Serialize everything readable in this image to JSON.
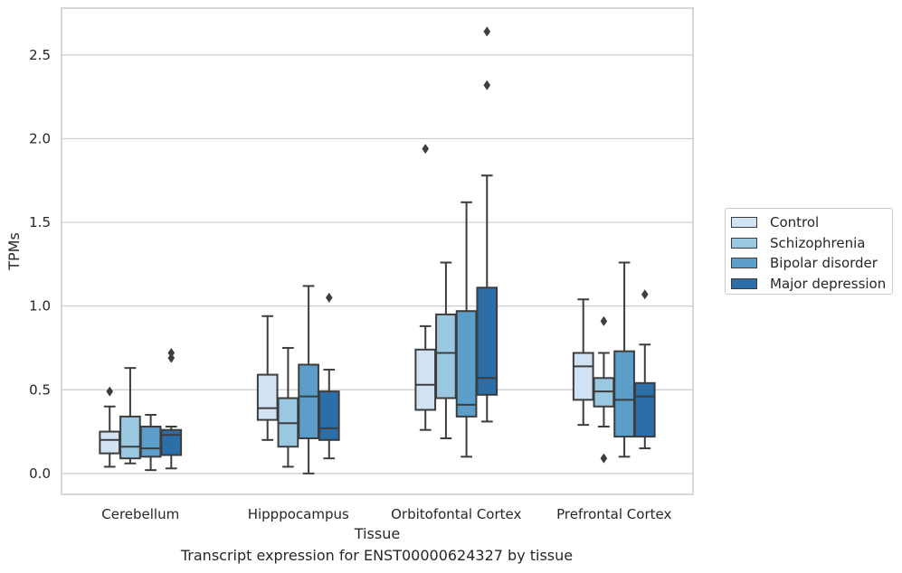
{
  "chart_data": {
    "type": "box",
    "title": "Transcript expression for ENST00000624327 by tissue",
    "xlabel": "Tissue",
    "ylabel": "TPMs",
    "ylim": [
      -0.125,
      2.78
    ],
    "yticks": [
      "0.0",
      "0.5",
      "1.0",
      "1.5",
      "2.0",
      "2.5"
    ],
    "ytick_values": [
      0.0,
      0.5,
      1.0,
      1.5,
      2.0,
      2.5
    ],
    "grid": true,
    "legend_position": "right",
    "categories": [
      "Cerebellum",
      "Hipppocampus",
      "Orbitofontal Cortex",
      "Prefrontal Cortex"
    ],
    "series": [
      {
        "name": "Control",
        "color": "#d1e2f2",
        "boxes": [
          {
            "whisker_low": 0.04,
            "q1": 0.12,
            "median": 0.2,
            "q3": 0.25,
            "whisker_high": 0.4,
            "outliers": [
              0.49
            ]
          },
          {
            "whisker_low": 0.2,
            "q1": 0.32,
            "median": 0.39,
            "q3": 0.59,
            "whisker_high": 0.94,
            "outliers": []
          },
          {
            "whisker_low": 0.26,
            "q1": 0.38,
            "median": 0.53,
            "q3": 0.74,
            "whisker_high": 0.88,
            "outliers": [
              1.94
            ]
          },
          {
            "whisker_low": 0.29,
            "q1": 0.44,
            "median": 0.64,
            "q3": 0.72,
            "whisker_high": 1.04,
            "outliers": []
          }
        ]
      },
      {
        "name": "Schizophrenia",
        "color": "#9ac8e0",
        "boxes": [
          {
            "whisker_low": 0.06,
            "q1": 0.09,
            "median": 0.16,
            "q3": 0.34,
            "whisker_high": 0.63,
            "outliers": []
          },
          {
            "whisker_low": 0.04,
            "q1": 0.16,
            "median": 0.3,
            "q3": 0.45,
            "whisker_high": 0.75,
            "outliers": []
          },
          {
            "whisker_low": 0.21,
            "q1": 0.45,
            "median": 0.72,
            "q3": 0.95,
            "whisker_high": 1.26,
            "outliers": []
          },
          {
            "whisker_low": 0.28,
            "q1": 0.4,
            "median": 0.49,
            "q3": 0.57,
            "whisker_high": 0.72,
            "outliers": [
              0.91,
              0.09
            ]
          }
        ]
      },
      {
        "name": "Bipolar disorder",
        "color": "#5a9ec9",
        "boxes": [
          {
            "whisker_low": 0.02,
            "q1": 0.1,
            "median": 0.15,
            "q3": 0.28,
            "whisker_high": 0.35,
            "outliers": []
          },
          {
            "whisker_low": 0.0,
            "q1": 0.21,
            "median": 0.46,
            "q3": 0.65,
            "whisker_high": 1.12,
            "outliers": []
          },
          {
            "whisker_low": 0.1,
            "q1": 0.34,
            "median": 0.41,
            "q3": 0.97,
            "whisker_high": 1.62,
            "outliers": []
          },
          {
            "whisker_low": 0.1,
            "q1": 0.22,
            "median": 0.44,
            "q3": 0.73,
            "whisker_high": 1.26,
            "outliers": []
          }
        ]
      },
      {
        "name": "Major depression",
        "color": "#2b6ea8",
        "boxes": [
          {
            "whisker_low": 0.03,
            "q1": 0.11,
            "median": 0.23,
            "q3": 0.26,
            "whisker_high": 0.28,
            "outliers": [
              0.72,
              0.69
            ]
          },
          {
            "whisker_low": 0.09,
            "q1": 0.2,
            "median": 0.27,
            "q3": 0.49,
            "whisker_high": 0.62,
            "outliers": [
              1.05
            ]
          },
          {
            "whisker_low": 0.31,
            "q1": 0.47,
            "median": 0.57,
            "q3": 1.11,
            "whisker_high": 1.78,
            "outliers": [
              2.64,
              2.32
            ]
          },
          {
            "whisker_low": 0.15,
            "q1": 0.22,
            "median": 0.46,
            "q3": 0.54,
            "whisker_high": 0.77,
            "outliers": [
              1.07
            ]
          }
        ]
      }
    ]
  }
}
